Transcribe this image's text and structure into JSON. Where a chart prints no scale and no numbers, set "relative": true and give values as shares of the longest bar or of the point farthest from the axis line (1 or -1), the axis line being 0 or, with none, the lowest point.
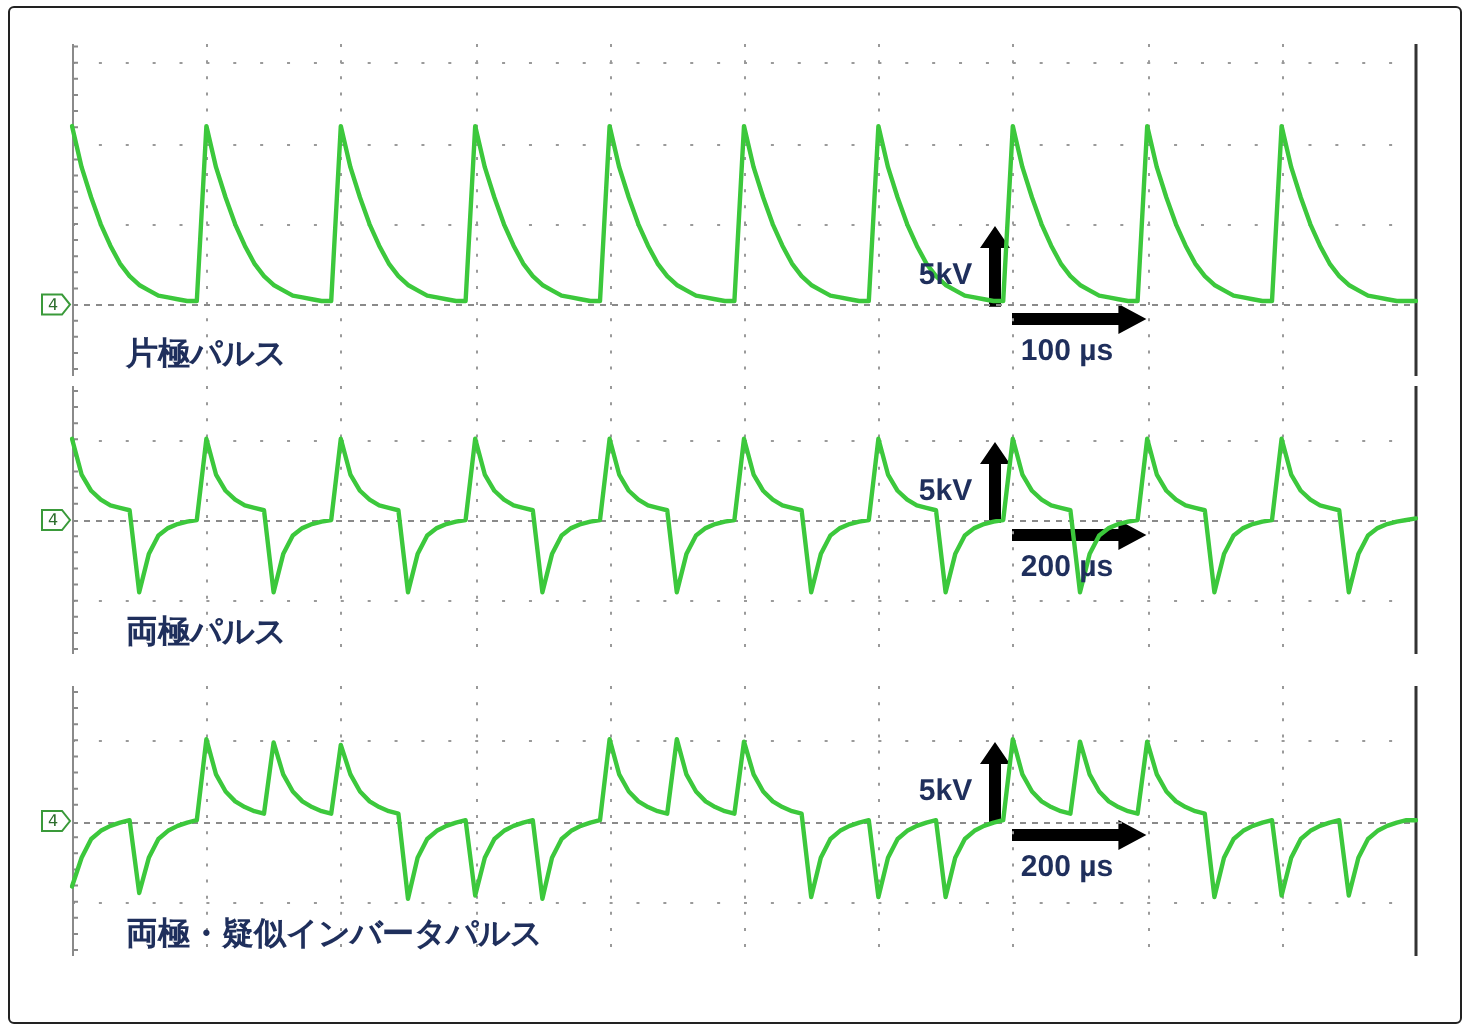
{
  "chart_data": [
    {
      "type": "line",
      "title": "片極パルス",
      "categories": [
        null,
        null,
        null,
        null,
        null,
        null,
        null,
        null,
        null,
        null,
        null,
        null,
        null,
        null,
        null,
        null,
        null,
        null,
        null,
        null,
        null,
        null,
        null,
        null,
        null,
        null,
        null,
        null,
        null,
        null,
        null,
        null,
        null,
        null,
        null,
        null,
        null,
        null,
        null,
        null,
        null,
        null,
        null,
        null,
        null,
        null,
        null,
        null,
        null,
        null,
        null,
        null,
        null,
        null,
        null,
        null,
        null,
        null,
        null,
        null,
        null,
        null,
        null,
        null,
        null,
        null,
        null,
        null,
        null,
        null,
        null,
        null,
        null,
        null,
        null,
        null,
        null,
        null,
        null,
        null,
        null,
        null,
        null,
        null,
        null,
        null,
        null,
        null,
        null,
        null,
        null,
        null,
        null,
        null,
        null,
        null,
        null,
        null,
        null,
        null,
        null,
        null,
        null,
        null,
        null,
        null,
        null,
        null,
        null,
        null,
        null,
        null,
        null,
        null,
        null,
        null,
        null,
        null,
        null,
        null,
        null,
        null,
        null,
        null,
        null,
        null,
        null,
        null,
        null,
        null,
        null,
        null,
        null,
        null,
        null,
        null,
        null,
        null,
        null,
        null,
        null
      ],
      "series": [
        {
          "color": "#3cc83c",
          "values": [
            1,
            0.77,
            0.6,
            0.45,
            0.33,
            0.23,
            0.16,
            0.11,
            0.08,
            0.05,
            0.04,
            0.03,
            0.02,
            0.02,
            1,
            0.77,
            0.6,
            0.45,
            0.33,
            0.23,
            0.16,
            0.11,
            0.08,
            0.05,
            0.04,
            0.03,
            0.02,
            0.02,
            1,
            0.77,
            0.6,
            0.45,
            0.33,
            0.23,
            0.16,
            0.11,
            0.08,
            0.05,
            0.04,
            0.03,
            0.02,
            0.02,
            1,
            0.77,
            0.6,
            0.45,
            0.33,
            0.23,
            0.16,
            0.11,
            0.08,
            0.05,
            0.04,
            0.03,
            0.02,
            0.02,
            1,
            0.77,
            0.6,
            0.45,
            0.33,
            0.23,
            0.16,
            0.11,
            0.08,
            0.05,
            0.04,
            0.03,
            0.02,
            0.02,
            1,
            0.77,
            0.6,
            0.45,
            0.33,
            0.23,
            0.16,
            0.11,
            0.08,
            0.05,
            0.04,
            0.03,
            0.02,
            0.02,
            1,
            0.77,
            0.6,
            0.45,
            0.33,
            0.23,
            0.16,
            0.11,
            0.08,
            0.05,
            0.04,
            0.03,
            0.02,
            0.02,
            1,
            0.77,
            0.6,
            0.45,
            0.33,
            0.23,
            0.16,
            0.11,
            0.08,
            0.05,
            0.04,
            0.03,
            0.02,
            0.02,
            1,
            0.77,
            0.6,
            0.45,
            0.33,
            0.23,
            0.16,
            0.11,
            0.08,
            0.05,
            0.04,
            0.03,
            0.02,
            0.02,
            1,
            0.77,
            0.6,
            0.45,
            0.33,
            0.23,
            0.16,
            0.11,
            0.08,
            0.05,
            0.04,
            0.03,
            0.02,
            0.02,
            0.02
          ]
        }
      ],
      "relative": true,
      "grid": true,
      "legend": false,
      "marker": "none",
      "line_style": "solid",
      "ref_lines": [
        {
          "axis": "y",
          "value": 0,
          "color": "#8a8a8a",
          "line_style": "dashed"
        }
      ],
      "annotations": [
        "5kV",
        "100 µs",
        {
          "text": "4",
          "y": 0
        }
      ]
    },
    {
      "type": "line",
      "title": "両極パルス",
      "categories": [
        null,
        null,
        null,
        null,
        null,
        null,
        null,
        null,
        null,
        null,
        null,
        null,
        null,
        null,
        null,
        null,
        null,
        null,
        null,
        null,
        null,
        null,
        null,
        null,
        null,
        null,
        null,
        null,
        null,
        null,
        null,
        null,
        null,
        null,
        null,
        null,
        null,
        null,
        null,
        null,
        null,
        null,
        null,
        null,
        null,
        null,
        null,
        null,
        null,
        null,
        null,
        null,
        null,
        null,
        null,
        null,
        null,
        null,
        null,
        null,
        null,
        null,
        null,
        null,
        null,
        null,
        null,
        null,
        null,
        null,
        null,
        null,
        null,
        null,
        null,
        null,
        null,
        null,
        null,
        null,
        null,
        null,
        null,
        null,
        null,
        null,
        null,
        null,
        null,
        null,
        null,
        null,
        null,
        null,
        null,
        null,
        null,
        null,
        null,
        null,
        null,
        null,
        null,
        null,
        null,
        null,
        null,
        null,
        null,
        null,
        null,
        null,
        null,
        null,
        null,
        null,
        null,
        null,
        null,
        null,
        null,
        null,
        null,
        null,
        null,
        null,
        null,
        null,
        null,
        null,
        null,
        null,
        null,
        null,
        null,
        null,
        null,
        null,
        null,
        null,
        null
      ],
      "series": [
        {
          "color": "#3cc83c",
          "values": [
            1,
            0.56,
            0.36,
            0.25,
            0.18,
            0.15,
            0.12,
            -0.89,
            -0.42,
            -0.19,
            -0.1,
            -0.05,
            -0.02,
            0,
            1,
            0.56,
            0.36,
            0.25,
            0.18,
            0.15,
            0.12,
            -0.89,
            -0.42,
            -0.19,
            -0.1,
            -0.05,
            -0.02,
            0,
            1,
            0.56,
            0.36,
            0.25,
            0.18,
            0.15,
            0.12,
            -0.89,
            -0.42,
            -0.19,
            -0.1,
            -0.05,
            -0.02,
            0,
            1,
            0.56,
            0.36,
            0.25,
            0.18,
            0.15,
            0.12,
            -0.89,
            -0.42,
            -0.19,
            -0.1,
            -0.05,
            -0.02,
            0,
            1,
            0.56,
            0.36,
            0.25,
            0.18,
            0.15,
            0.12,
            -0.89,
            -0.42,
            -0.19,
            -0.1,
            -0.05,
            -0.02,
            0,
            1,
            0.56,
            0.36,
            0.25,
            0.18,
            0.15,
            0.12,
            -0.89,
            -0.42,
            -0.19,
            -0.1,
            -0.05,
            -0.02,
            0,
            1,
            0.56,
            0.36,
            0.25,
            0.18,
            0.15,
            0.12,
            -0.89,
            -0.42,
            -0.19,
            -0.1,
            -0.05,
            -0.02,
            0,
            1,
            0.56,
            0.36,
            0.25,
            0.18,
            0.15,
            0.12,
            -0.89,
            -0.42,
            -0.19,
            -0.1,
            -0.05,
            -0.02,
            0,
            1,
            0.56,
            0.36,
            0.25,
            0.18,
            0.15,
            0.12,
            -0.89,
            -0.42,
            -0.19,
            -0.1,
            -0.05,
            -0.02,
            0,
            1,
            0.56,
            0.36,
            0.25,
            0.18,
            0.15,
            0.12,
            -0.89,
            -0.42,
            -0.19,
            -0.1,
            -0.05,
            -0.02,
            0,
            0.02
          ]
        }
      ],
      "relative": true,
      "grid": true,
      "legend": false,
      "marker": "none",
      "line_style": "solid",
      "ref_lines": [
        {
          "axis": "y",
          "value": 0,
          "color": "#8a8a8a",
          "line_style": "dashed"
        }
      ],
      "annotations": [
        "5kV",
        "200 µs",
        {
          "text": "4",
          "y": 0
        }
      ]
    },
    {
      "type": "line",
      "title": "両極・疑似インバータパルス",
      "categories": [
        null,
        null,
        null,
        null,
        null,
        null,
        null,
        null,
        null,
        null,
        null,
        null,
        null,
        null,
        null,
        null,
        null,
        null,
        null,
        null,
        null,
        null,
        null,
        null,
        null,
        null,
        null,
        null,
        null,
        null,
        null,
        null,
        null,
        null,
        null,
        null,
        null,
        null,
        null,
        null,
        null,
        null,
        null,
        null,
        null,
        null,
        null,
        null,
        null,
        null,
        null,
        null,
        null,
        null,
        null,
        null,
        null,
        null,
        null,
        null,
        null,
        null,
        null,
        null,
        null,
        null,
        null,
        null,
        null,
        null,
        null,
        null,
        null,
        null,
        null,
        null,
        null,
        null,
        null,
        null,
        null,
        null,
        null,
        null,
        null,
        null,
        null,
        null,
        null,
        null,
        null,
        null,
        null,
        null,
        null,
        null,
        null,
        null,
        null,
        null,
        null,
        null,
        null,
        null,
        null,
        null,
        null,
        null,
        null,
        null,
        null,
        null,
        null,
        null,
        null,
        null,
        null,
        null,
        null,
        null,
        null,
        null,
        null,
        null,
        null,
        null,
        null,
        null,
        null,
        null,
        null,
        null,
        null,
        null,
        null,
        null,
        null,
        null,
        null,
        null,
        null
      ],
      "series": [
        {
          "color": "#3cc83c",
          "values": [
            -0.8,
            -0.45,
            -0.22,
            -0.12,
            -0.06,
            -0.02,
            0.01,
            -0.88,
            -0.45,
            -0.22,
            -0.12,
            -0.06,
            -0.02,
            0.01,
            1,
            0.57,
            0.36,
            0.24,
            0.17,
            0.12,
            0.09,
            0.96,
            0.57,
            0.36,
            0.24,
            0.17,
            0.12,
            0.09,
            0.93,
            0.57,
            0.36,
            0.24,
            0.17,
            0.12,
            0.09,
            -0.95,
            -0.45,
            -0.22,
            -0.12,
            -0.06,
            -0.02,
            0.01,
            -0.91,
            -0.45,
            -0.22,
            -0.12,
            -0.06,
            -0.02,
            0.01,
            -0.95,
            -0.45,
            -0.22,
            -0.12,
            -0.06,
            -0.02,
            0.01,
            1,
            0.57,
            0.36,
            0.24,
            0.17,
            0.12,
            0.09,
            1,
            0.57,
            0.36,
            0.24,
            0.17,
            0.12,
            0.09,
            0.97,
            0.57,
            0.36,
            0.24,
            0.17,
            0.12,
            0.09,
            -0.93,
            -0.45,
            -0.22,
            -0.12,
            -0.06,
            -0.02,
            0.01,
            -0.93,
            -0.45,
            -0.22,
            -0.12,
            -0.06,
            -0.02,
            0.01,
            -0.93,
            -0.45,
            -0.22,
            -0.12,
            -0.06,
            -0.02,
            0.01,
            1,
            0.57,
            0.36,
            0.24,
            0.17,
            0.12,
            0.09,
            0.97,
            0.57,
            0.36,
            0.24,
            0.17,
            0.12,
            0.09,
            0.97,
            0.57,
            0.36,
            0.24,
            0.17,
            0.12,
            0.09,
            -0.93,
            -0.45,
            -0.22,
            -0.12,
            -0.06,
            -0.02,
            0.01,
            -0.91,
            -0.45,
            -0.22,
            -0.12,
            -0.06,
            -0.02,
            0.01,
            -0.91,
            -0.45,
            -0.22,
            -0.12,
            -0.06,
            -0.02,
            0.01,
            0.01
          ]
        }
      ],
      "relative": true,
      "grid": true,
      "legend": false,
      "marker": "none",
      "line_style": "solid",
      "ref_lines": [
        {
          "axis": "y",
          "value": 0,
          "color": "#8a8a8a",
          "line_style": "dashed"
        }
      ],
      "annotations": [
        "5kV",
        "200 µs",
        {
          "text": "4",
          "y": 0
        }
      ]
    }
  ]
}
